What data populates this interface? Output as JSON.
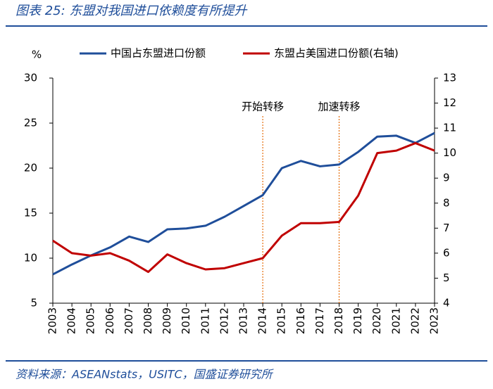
{
  "chart_data": {
    "type": "line",
    "title": "图表 25:  东盟对我国进口依赖度有所提升",
    "source": "资料来源：ASEANstats，USITC，国盛证券研究所",
    "y_label": "%",
    "categories": [
      "2003",
      "2004",
      "2005",
      "2006",
      "2007",
      "2008",
      "2009",
      "2010",
      "2011",
      "2012",
      "2013",
      "2014",
      "2015",
      "2016",
      "2017",
      "2018",
      "2019",
      "2020",
      "2021",
      "2022",
      "2023"
    ],
    "series": [
      {
        "name": "中国占东盟进口份额",
        "color": "#1f4e9a",
        "values": [
          8.2,
          9.3,
          10.3,
          11.2,
          12.4,
          11.8,
          13.2,
          13.3,
          13.6,
          14.6,
          15.8,
          17.0,
          20.0,
          20.8,
          20.2,
          20.4,
          21.8,
          23.5,
          23.6,
          22.8,
          23.9
        ]
      },
      {
        "name": "东盟占美国进口份额(右轴)",
        "color": "#c00000",
        "axis": "y2",
        "values": [
          6.5,
          6.0,
          5.9,
          6.0,
          5.7,
          5.25,
          5.95,
          5.6,
          5.35,
          5.4,
          5.6,
          5.8,
          6.7,
          7.2,
          7.2,
          7.25,
          8.3,
          10.0,
          10.1,
          10.4,
          10.1
        ]
      }
    ],
    "ylim": [
      5,
      30
    ],
    "yticks": [
      5,
      10,
      15,
      20,
      25,
      30
    ],
    "y2lim": [
      4,
      13
    ],
    "y2ticks": [
      4,
      5,
      6,
      7,
      8,
      9,
      10,
      11,
      12,
      13
    ],
    "annotations": [
      {
        "text": "开始转移",
        "x": "2014"
      },
      {
        "text": "加速转移",
        "x": "2018"
      }
    ]
  }
}
